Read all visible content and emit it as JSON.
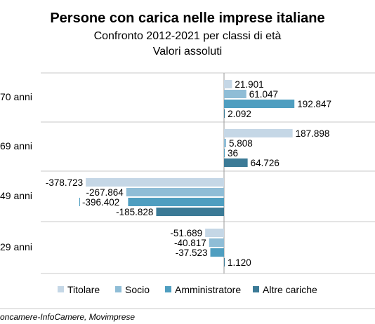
{
  "chart_data": {
    "type": "bar",
    "orientation": "horizontal",
    "title": "Persone con carica nelle imprese italiane",
    "subtitle_1": "Confronto 2012-2021 per classi di età",
    "subtitle_2": "Valori assoluti",
    "categories": [
      "70 anni",
      "69 anni",
      "49 anni",
      "29 anni"
    ],
    "series": [
      {
        "name": "Titolare",
        "color": "#c5d7e6",
        "values": [
          21901,
          187898,
          -378723,
          -51689
        ],
        "labels": [
          "21.901",
          "187.898",
          "-378.723",
          "-51.689"
        ]
      },
      {
        "name": "Socio",
        "color": "#8fbdd6",
        "values": [
          61047,
          5808,
          -267864,
          -40817
        ],
        "labels": [
          "61.047",
          "5.808",
          "-267.864",
          "-40.817"
        ]
      },
      {
        "name": "Amministratore",
        "color": "#4f9ec0",
        "values": [
          192847,
          36,
          -396402,
          -37523
        ],
        "labels": [
          "192.847",
          "36",
          "-396.402",
          "-37.523"
        ]
      },
      {
        "name": "Altre cariche",
        "color": "#3b7a96",
        "values": [
          2092,
          64726,
          -185828,
          1120
        ],
        "labels": [
          "2.092",
          "64.726",
          "-185.828",
          "1.120"
        ]
      }
    ],
    "legend_position": "bottom",
    "grid": "horizontal separators between groups",
    "source": "oncamere-InfoCamere, Movimprese"
  }
}
